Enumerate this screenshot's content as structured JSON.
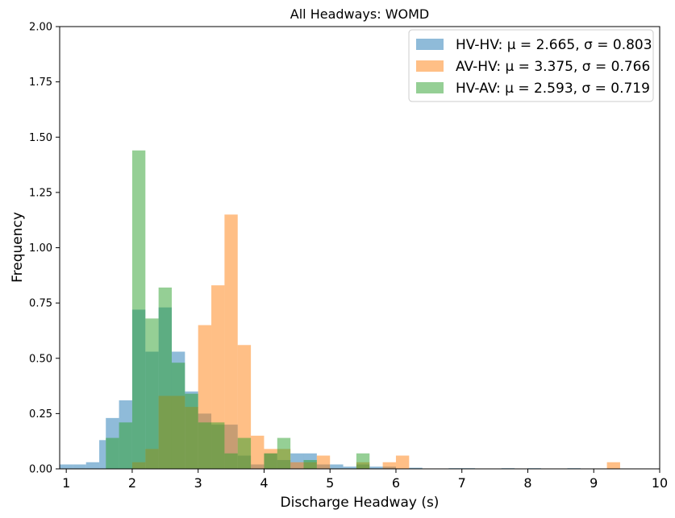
{
  "chart_data": {
    "type": "histogram",
    "title": "All Headways: WOMD",
    "xlabel": "Discharge Headway (s)",
    "ylabel": "Frequency",
    "xlim": [
      0.9,
      10
    ],
    "ylim": [
      0,
      2
    ],
    "xticks": [
      "1",
      "2",
      "3",
      "4",
      "5",
      "6",
      "7",
      "8",
      "9",
      "10"
    ],
    "yticks": [
      "0.00",
      "0.25",
      "0.50",
      "0.75",
      "1.00",
      "1.25",
      "1.50",
      "1.75",
      "2.00"
    ],
    "legend_position": "top-right",
    "series": [
      {
        "name": "HV-HV",
        "label": "HV-HV: μ = 2.665, σ = 0.803",
        "color": "#1f77b4",
        "bins": [
          {
            "x0": 0.9,
            "x1": 1.1,
            "value": 0.02
          },
          {
            "x0": 1.1,
            "x1": 1.3,
            "value": 0.02
          },
          {
            "x0": 1.3,
            "x1": 1.5,
            "value": 0.03
          },
          {
            "x0": 1.5,
            "x1": 1.6,
            "value": 0.13
          },
          {
            "x0": 1.6,
            "x1": 1.8,
            "value": 0.23
          },
          {
            "x0": 1.8,
            "x1": 2.0,
            "value": 0.31
          },
          {
            "x0": 2.0,
            "x1": 2.2,
            "value": 0.72
          },
          {
            "x0": 2.2,
            "x1": 2.4,
            "value": 0.53
          },
          {
            "x0": 2.4,
            "x1": 2.6,
            "value": 0.73
          },
          {
            "x0": 2.6,
            "x1": 2.8,
            "value": 0.53
          },
          {
            "x0": 2.8,
            "x1": 3.0,
            "value": 0.35
          },
          {
            "x0": 3.0,
            "x1": 3.2,
            "value": 0.25
          },
          {
            "x0": 3.2,
            "x1": 3.4,
            "value": 0.2
          },
          {
            "x0": 3.4,
            "x1": 3.6,
            "value": 0.2
          },
          {
            "x0": 3.6,
            "x1": 3.8,
            "value": 0.06
          },
          {
            "x0": 3.8,
            "x1": 4.0,
            "value": 0.02
          },
          {
            "x0": 4.0,
            "x1": 4.2,
            "value": 0.07
          },
          {
            "x0": 4.2,
            "x1": 4.4,
            "value": 0.04
          },
          {
            "x0": 4.4,
            "x1": 4.6,
            "value": 0.07
          },
          {
            "x0": 4.6,
            "x1": 4.8,
            "value": 0.07
          },
          {
            "x0": 4.8,
            "x1": 5.0,
            "value": 0.02
          },
          {
            "x0": 5.0,
            "x1": 5.2,
            "value": 0.02
          },
          {
            "x0": 5.2,
            "x1": 5.4,
            "value": 0.01
          },
          {
            "x0": 5.4,
            "x1": 5.6,
            "value": 0.02
          },
          {
            "x0": 5.6,
            "x1": 5.8,
            "value": 0.01
          },
          {
            "x0": 5.8,
            "x1": 6.0,
            "value": 0.01
          },
          {
            "x0": 6.2,
            "x1": 6.4,
            "value": 0.005
          },
          {
            "x0": 6.8,
            "x1": 7.0,
            "value": 0.003
          },
          {
            "x0": 7.0,
            "x1": 7.2,
            "value": 0.003
          },
          {
            "x0": 7.6,
            "x1": 7.8,
            "value": 0.003
          },
          {
            "x0": 8.0,
            "x1": 8.2,
            "value": 0.003
          },
          {
            "x0": 8.6,
            "x1": 8.8,
            "value": 0.003
          }
        ]
      },
      {
        "name": "AV-HV",
        "label": "AV-HV: μ = 3.375, σ = 0.766",
        "color": "#ff7f0e",
        "bins": [
          {
            "x0": 2.0,
            "x1": 2.2,
            "value": 0.03
          },
          {
            "x0": 2.2,
            "x1": 2.4,
            "value": 0.09
          },
          {
            "x0": 2.4,
            "x1": 2.6,
            "value": 0.33
          },
          {
            "x0": 2.6,
            "x1": 2.8,
            "value": 0.33
          },
          {
            "x0": 2.8,
            "x1": 3.0,
            "value": 0.28
          },
          {
            "x0": 3.0,
            "x1": 3.2,
            "value": 0.65
          },
          {
            "x0": 3.2,
            "x1": 3.4,
            "value": 0.83
          },
          {
            "x0": 3.4,
            "x1": 3.6,
            "value": 1.15
          },
          {
            "x0": 3.6,
            "x1": 3.8,
            "value": 0.56
          },
          {
            "x0": 3.8,
            "x1": 4.0,
            "value": 0.15
          },
          {
            "x0": 4.0,
            "x1": 4.2,
            "value": 0.09
          },
          {
            "x0": 4.2,
            "x1": 4.4,
            "value": 0.09
          },
          {
            "x0": 4.4,
            "x1": 4.6,
            "value": 0.03
          },
          {
            "x0": 4.6,
            "x1": 4.8,
            "value": 0.03
          },
          {
            "x0": 4.8,
            "x1": 5.0,
            "value": 0.06
          },
          {
            "x0": 5.4,
            "x1": 5.6,
            "value": 0.03
          },
          {
            "x0": 5.8,
            "x1": 6.0,
            "value": 0.03
          },
          {
            "x0": 6.0,
            "x1": 6.2,
            "value": 0.06
          },
          {
            "x0": 9.2,
            "x1": 9.4,
            "value": 0.03
          }
        ]
      },
      {
        "name": "HV-AV",
        "label": "HV-AV: μ = 2.593, σ = 0.719",
        "color": "#2ca02c",
        "bins": [
          {
            "x0": 1.6,
            "x1": 1.8,
            "value": 0.14
          },
          {
            "x0": 1.8,
            "x1": 2.0,
            "value": 0.21
          },
          {
            "x0": 2.0,
            "x1": 2.2,
            "value": 1.44
          },
          {
            "x0": 2.2,
            "x1": 2.4,
            "value": 0.68
          },
          {
            "x0": 2.4,
            "x1": 2.6,
            "value": 0.82
          },
          {
            "x0": 2.6,
            "x1": 2.8,
            "value": 0.48
          },
          {
            "x0": 2.8,
            "x1": 3.0,
            "value": 0.34
          },
          {
            "x0": 3.0,
            "x1": 3.2,
            "value": 0.21
          },
          {
            "x0": 3.2,
            "x1": 3.4,
            "value": 0.21
          },
          {
            "x0": 3.4,
            "x1": 3.6,
            "value": 0.07
          },
          {
            "x0": 3.6,
            "x1": 3.8,
            "value": 0.14
          },
          {
            "x0": 4.0,
            "x1": 4.2,
            "value": 0.07
          },
          {
            "x0": 4.2,
            "x1": 4.4,
            "value": 0.14
          },
          {
            "x0": 4.6,
            "x1": 4.8,
            "value": 0.04
          },
          {
            "x0": 5.4,
            "x1": 5.6,
            "value": 0.07
          }
        ]
      }
    ]
  }
}
